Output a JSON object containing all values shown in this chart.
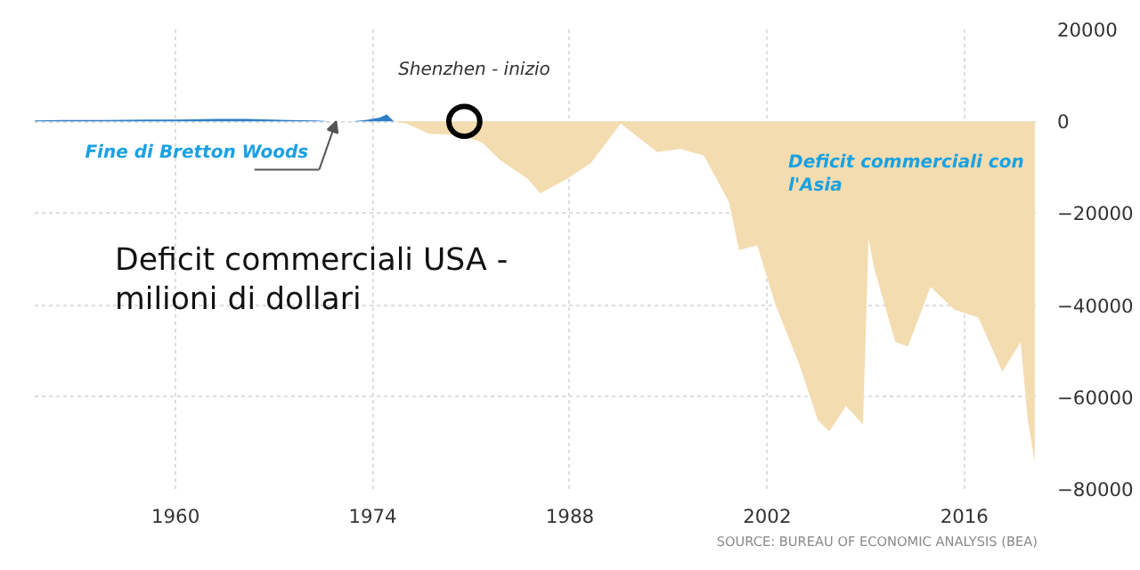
{
  "chart_data": {
    "type": "area",
    "title": "Deficit commerciali USA - milioni di dollari",
    "series": [
      {
        "color": "#2f7fc8",
        "x": [
          1950,
          1952,
          1955,
          1958,
          1960,
          1963,
          1965,
          1968,
          1970,
          1971,
          1972.5,
          1973.5,
          1974.5,
          1975,
          1975.5
        ],
        "values": [
          200,
          300,
          300,
          400,
          400,
          500,
          500,
          300,
          200,
          0,
          0,
          300,
          800,
          1500,
          0
        ]
      },
      {
        "color": "#f3dcb0",
        "x": [
          1975.5,
          1976.4,
          1978,
          1980.3,
          1981.8,
          1983.1,
          1985,
          1985.9,
          1987.8,
          1989.5,
          1991.6,
          1994.2,
          1995.8,
          1997.5,
          1998.4,
          1999.3,
          2000,
          2001.3,
          2002.6,
          2004.3,
          2005.6,
          2006.4,
          2007.6,
          2008.8,
          2009.2,
          2009.6,
          2011.1,
          2012,
          2013.6,
          2015.3,
          2017,
          2018.7,
          2020,
          2020.5,
          2021
        ],
        "values": [
          0,
          -500,
          -2700,
          -3000,
          -4700,
          -8600,
          -12500,
          -15700,
          -12500,
          -9000,
          -500,
          -6700,
          -6000,
          -7400,
          -12500,
          -17600,
          -28000,
          -27000,
          -40000,
          -53000,
          -65000,
          -67500,
          -62000,
          -66000,
          -25600,
          -32000,
          -48000,
          -49000,
          -36000,
          -41000,
          -42700,
          -54500,
          -48000,
          -65000,
          -74000
        ]
      }
    ],
    "xlim": [
      1950,
      2021.2
    ],
    "xticks": [
      1960,
      1974,
      1988,
      2002,
      2016
    ],
    "ylim": [
      -80000,
      20000
    ],
    "yticks": [
      -80000,
      -60000,
      -40000,
      -20000,
      0,
      20000
    ],
    "grid": true,
    "annotations": [
      {
        "text": "Fine di Bretton Woods",
        "x": 1971.4,
        "y": 0
      },
      {
        "text": "Shenzhen - inizio",
        "x": 1980.5,
        "y": 0
      },
      "Deficit commerciali con l'Asia",
      "SOURCE: BUREAU OF ECONOMIC ANALYSIS (BEA)"
    ]
  }
}
